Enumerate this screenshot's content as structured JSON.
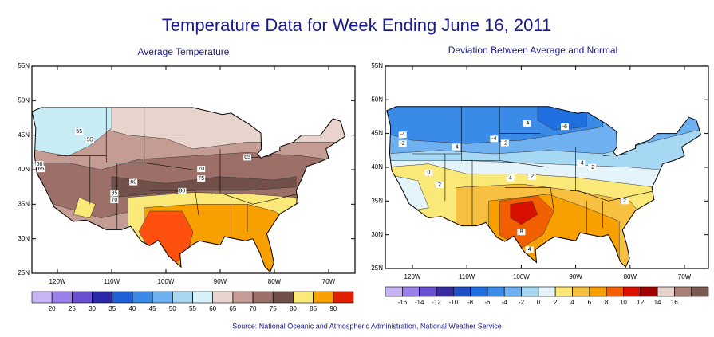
{
  "title": "Temperature Data for Week Ending June 16, 2011",
  "maps": [
    {
      "subtitle": "Average Temperature",
      "lat_ticks": [
        {
          "value": 55,
          "label": "55N"
        },
        {
          "value": 50,
          "label": "50N"
        },
        {
          "value": 45,
          "label": "45N"
        },
        {
          "value": 40,
          "label": "40N"
        },
        {
          "value": 35,
          "label": "35N"
        },
        {
          "value": 30,
          "label": "30N"
        },
        {
          "value": 25,
          "label": "25N"
        }
      ],
      "lon_ticks": [
        {
          "value": -120,
          "label": "120W"
        },
        {
          "value": -110,
          "label": "110W"
        },
        {
          "value": -100,
          "label": "100W"
        },
        {
          "value": -90,
          "label": "90W"
        },
        {
          "value": -80,
          "label": "80W"
        },
        {
          "value": -70,
          "label": "70W"
        }
      ],
      "contour_labels": [
        55,
        55,
        60,
        65,
        60,
        85,
        70,
        80,
        70,
        75,
        65
      ],
      "legend": {
        "ticks": [
          20,
          25,
          30,
          35,
          40,
          45,
          50,
          55,
          60,
          65,
          70,
          75,
          80,
          85,
          90
        ],
        "colors": [
          "#c8b4f4",
          "#9b7fe8",
          "#6a4fd0",
          "#2a2aa8",
          "#1f5fd8",
          "#3a8ae8",
          "#6fb0f0",
          "#a6d8f4",
          "#d8f0f8",
          "#e8d4cc",
          "#c49c94",
          "#9c7068",
          "#705048",
          "#fae878",
          "#f8a000",
          "#e02000"
        ]
      }
    },
    {
      "subtitle": "Deviation Between Average and Normal",
      "lat_ticks": [
        {
          "value": 55,
          "label": "55N"
        },
        {
          "value": 50,
          "label": "50N"
        },
        {
          "value": 45,
          "label": "45N"
        },
        {
          "value": 40,
          "label": "40N"
        },
        {
          "value": 35,
          "label": "35N"
        },
        {
          "value": 30,
          "label": "30N"
        },
        {
          "value": 25,
          "label": "25N"
        }
      ],
      "lon_ticks": [
        {
          "value": -120,
          "label": "120W"
        },
        {
          "value": -110,
          "label": "110W"
        },
        {
          "value": -100,
          "label": "100W"
        },
        {
          "value": -90,
          "label": "90W"
        },
        {
          "value": -80,
          "label": "80W"
        },
        {
          "value": -70,
          "label": "70W"
        }
      ],
      "contour_labels": [
        -4,
        -2,
        -4,
        -4,
        -2,
        -4,
        -6,
        -4,
        -2,
        0,
        2,
        4,
        2,
        8,
        4,
        2
      ],
      "legend": {
        "ticks": [
          -16,
          -14,
          -12,
          -10,
          -8,
          -6,
          -4,
          -2,
          0,
          2,
          4,
          6,
          8,
          10,
          12,
          14,
          16
        ],
        "colors": [
          "#c8b4f4",
          "#9b7fe8",
          "#6a4fd0",
          "#3a2aa0",
          "#1f4fc0",
          "#1f6fe0",
          "#3a8ae8",
          "#6fb0f0",
          "#a6d8f4",
          "#e4f4fa",
          "#fae878",
          "#f8c040",
          "#f8a000",
          "#f06000",
          "#d81000",
          "#a00000",
          "#e8d4cc",
          "#a88078",
          "#7a5a50"
        ]
      }
    }
  ],
  "source": "Source:  National Oceanic and Atmospheric Administration, National Weather Service"
}
